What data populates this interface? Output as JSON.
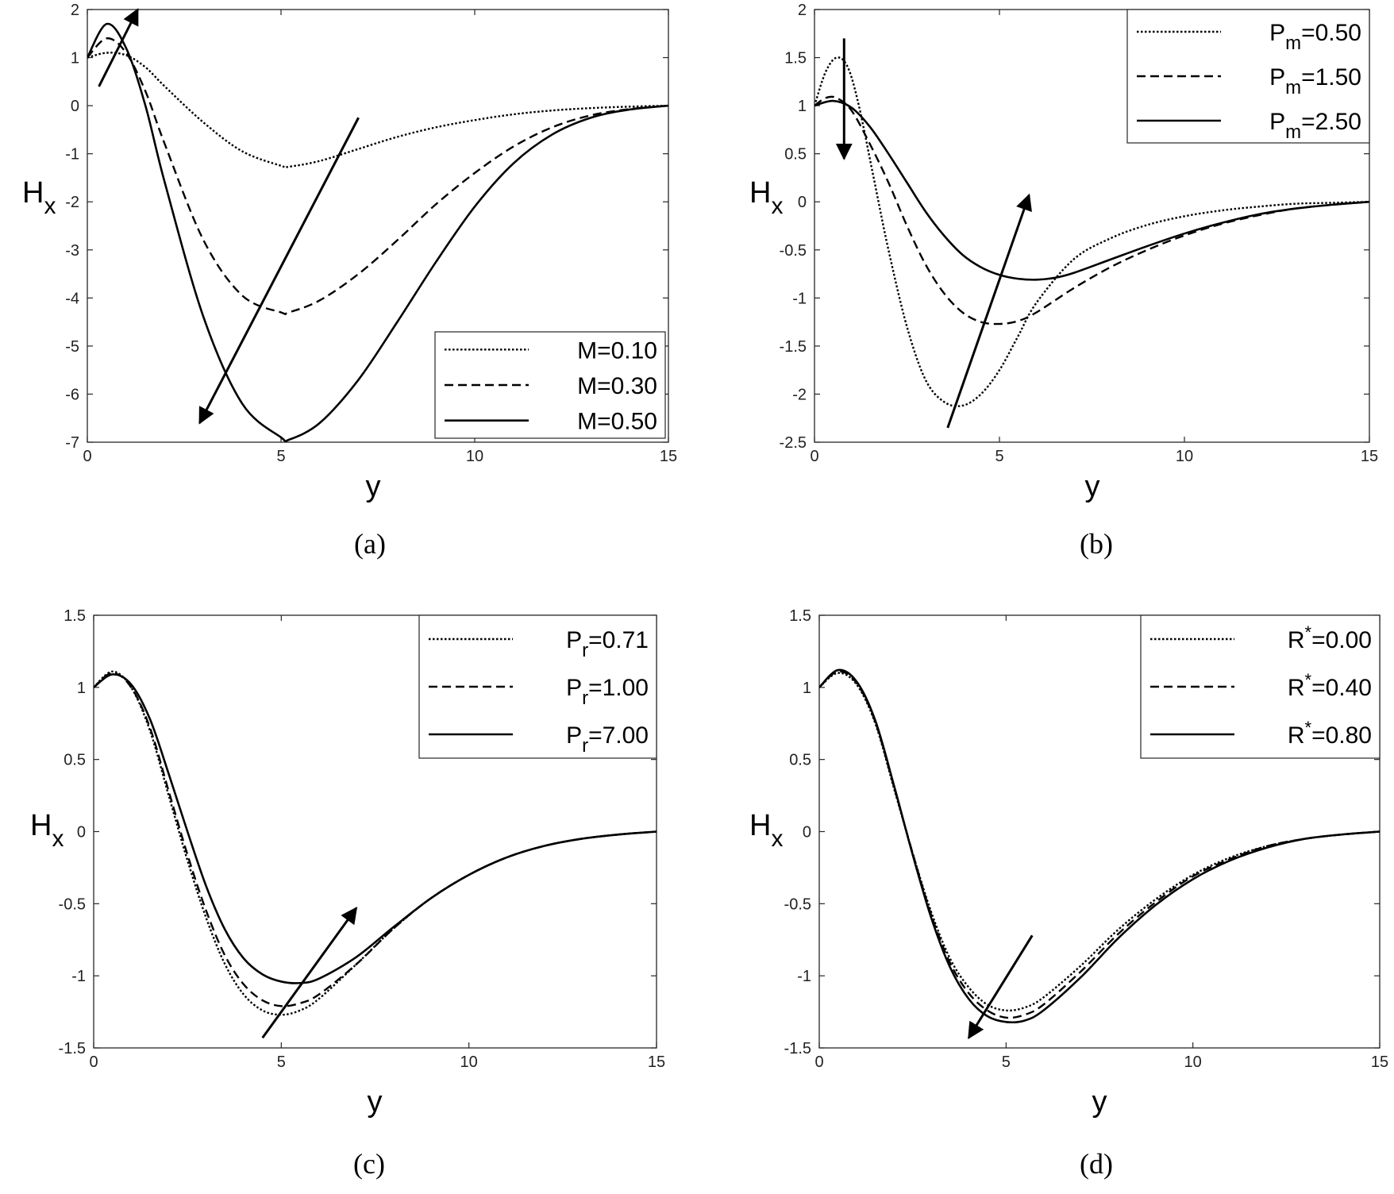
{
  "chart_data": [
    {
      "type": "line",
      "caption": "(a)",
      "ylabel": "H",
      "ylabel_sub": "x",
      "xlabel": "y",
      "xlim": [
        0,
        15
      ],
      "ylim": [
        -7,
        2
      ],
      "xticks": [
        0,
        5,
        10,
        15
      ],
      "yticks": [
        2,
        1,
        0,
        -1,
        -2,
        -3,
        -4,
        -5,
        -6,
        -7
      ],
      "ytick_labels": [
        "2",
        "1",
        "0",
        "-1",
        "-2",
        "-3",
        "-4",
        "-5",
        "-6",
        "-7"
      ],
      "legend_position": "bottom-right",
      "series": [
        {
          "name": "M=0.10",
          "label_main": "M=0.10",
          "label_sub": "",
          "label_sup": "",
          "label_tail": "",
          "style": "dotted",
          "x": [
            0,
            0.5,
            1,
            1.5,
            2,
            3,
            4,
            5,
            5.2,
            6,
            7,
            8,
            9,
            10,
            11,
            12,
            13,
            14,
            15
          ],
          "y": [
            1,
            1.1,
            1.05,
            0.8,
            0.4,
            -0.35,
            -0.95,
            -1.25,
            -1.27,
            -1.15,
            -0.9,
            -0.65,
            -0.45,
            -0.3,
            -0.18,
            -0.1,
            -0.05,
            -0.02,
            0
          ]
        },
        {
          "name": "M=0.30",
          "label_main": "M=0.30",
          "label_sub": "",
          "label_sup": "",
          "label_tail": "",
          "style": "dashed",
          "x": [
            0,
            0.5,
            1,
            1.5,
            2,
            3,
            4,
            5,
            5.2,
            6,
            7,
            8,
            9,
            10,
            11,
            12,
            13,
            14,
            15
          ],
          "y": [
            1,
            1.4,
            1.1,
            0.3,
            -0.8,
            -2.8,
            -3.95,
            -4.3,
            -4.3,
            -4.05,
            -3.5,
            -2.8,
            -2.05,
            -1.4,
            -0.85,
            -0.45,
            -0.2,
            -0.07,
            0
          ]
        },
        {
          "name": "M=0.50",
          "label_main": "M=0.50",
          "label_sub": "",
          "label_sup": "",
          "label_tail": "",
          "style": "solid",
          "x": [
            0,
            0.5,
            1,
            1.5,
            2,
            3,
            4,
            5,
            5.2,
            6,
            7,
            8,
            9,
            10,
            11,
            12,
            13,
            14,
            15
          ],
          "y": [
            1,
            1.7,
            1.2,
            0,
            -1.6,
            -4.4,
            -6.2,
            -6.9,
            -6.95,
            -6.6,
            -5.7,
            -4.5,
            -3.25,
            -2.1,
            -1.2,
            -0.6,
            -0.25,
            -0.08,
            0
          ]
        }
      ],
      "arrows": [
        {
          "from": [
            0.3,
            0.4
          ],
          "to": [
            1.3,
            2.0
          ]
        },
        {
          "from": [
            7.0,
            -0.25
          ],
          "to": [
            2.9,
            -6.6
          ]
        }
      ]
    },
    {
      "type": "line",
      "caption": "(b)",
      "ylabel": "H",
      "ylabel_sub": "x",
      "xlabel": "y",
      "xlim": [
        0,
        15
      ],
      "ylim": [
        -2.5,
        2
      ],
      "xticks": [
        0,
        5,
        10,
        15
      ],
      "yticks": [
        2,
        1.5,
        1,
        0.5,
        0,
        -0.5,
        -1,
        -1.5,
        -2,
        -2.5
      ],
      "ytick_labels": [
        "2",
        "1.5",
        "1",
        "0.5",
        "0",
        "-0.5",
        "-1",
        "-1.5",
        "-2",
        "-2.5"
      ],
      "legend_position": "top-right",
      "series": [
        {
          "name": "Pm=0.50",
          "label_main": "P",
          "label_sub": "m",
          "label_sup": "",
          "label_tail": "=0.50",
          "style": "dotted",
          "x": [
            0,
            0.3,
            0.6,
            0.9,
            1.2,
            1.6,
            2,
            2.5,
            3,
            3.5,
            4,
            4.5,
            5,
            5.5,
            6,
            7,
            8,
            9,
            10,
            11,
            12,
            13,
            14,
            15
          ],
          "y": [
            1,
            1.35,
            1.5,
            1.4,
            1.0,
            0.25,
            -0.5,
            -1.3,
            -1.85,
            -2.08,
            -2.12,
            -2.0,
            -1.75,
            -1.4,
            -1.05,
            -0.6,
            -0.38,
            -0.24,
            -0.15,
            -0.09,
            -0.05,
            -0.02,
            -0.01,
            0
          ]
        },
        {
          "name": "Pm=1.50",
          "label_main": "P",
          "label_sub": "m",
          "label_sup": "",
          "label_tail": "=1.50",
          "style": "dashed",
          "x": [
            0,
            0.3,
            0.6,
            1,
            1.5,
            2,
            2.5,
            3,
            3.5,
            4,
            4.5,
            5,
            5.5,
            6,
            7,
            8,
            9,
            10,
            11,
            12,
            13,
            14,
            15
          ],
          "y": [
            1,
            1.08,
            1.08,
            0.95,
            0.6,
            0.2,
            -0.25,
            -0.65,
            -0.95,
            -1.15,
            -1.25,
            -1.27,
            -1.24,
            -1.15,
            -0.9,
            -0.68,
            -0.5,
            -0.35,
            -0.23,
            -0.14,
            -0.07,
            -0.03,
            0
          ]
        },
        {
          "name": "Pm=2.50",
          "label_main": "P",
          "label_sub": "m",
          "label_sup": "",
          "label_tail": "=2.50",
          "style": "solid",
          "x": [
            0,
            0.5,
            1,
            1.5,
            2,
            2.5,
            3,
            3.5,
            4,
            4.5,
            5,
            5.5,
            6,
            6.5,
            7,
            8,
            9,
            10,
            11,
            12,
            13,
            14,
            15
          ],
          "y": [
            1,
            1.05,
            0.98,
            0.78,
            0.5,
            0.2,
            -0.1,
            -0.35,
            -0.55,
            -0.68,
            -0.76,
            -0.8,
            -0.81,
            -0.79,
            -0.74,
            -0.6,
            -0.46,
            -0.33,
            -0.22,
            -0.13,
            -0.07,
            -0.03,
            0
          ]
        }
      ],
      "arrows": [
        {
          "from": [
            0.8,
            1.7
          ],
          "to": [
            0.8,
            0.45
          ]
        },
        {
          "from": [
            3.6,
            -2.35
          ],
          "to": [
            5.8,
            0.07
          ]
        }
      ]
    },
    {
      "type": "line",
      "caption": "(c)",
      "ylabel": "H",
      "ylabel_sub": "x",
      "xlabel": "y",
      "xlim": [
        0,
        15
      ],
      "ylim": [
        -1.5,
        1.5
      ],
      "xticks": [
        0,
        5,
        10,
        15
      ],
      "yticks": [
        1.5,
        1,
        0.5,
        0,
        -0.5,
        -1,
        -1.5
      ],
      "ytick_labels": [
        "1.5",
        "1",
        "0.5",
        "0",
        "-0.5",
        "-1",
        "-1.5"
      ],
      "legend_position": "top-right",
      "series": [
        {
          "name": "Pr=0.71",
          "label_main": "P",
          "label_sub": "r",
          "label_sup": "",
          "label_tail": "=0.71",
          "style": "dotted",
          "x": [
            0,
            0.5,
            1,
            1.5,
            2,
            2.5,
            3,
            3.5,
            4,
            4.5,
            5,
            5.5,
            6,
            7,
            8,
            9,
            10,
            11,
            12,
            13,
            14,
            15
          ],
          "y": [
            1,
            1.11,
            1.0,
            0.7,
            0.25,
            -0.2,
            -0.6,
            -0.92,
            -1.13,
            -1.24,
            -1.27,
            -1.24,
            -1.16,
            -0.92,
            -0.67,
            -0.46,
            -0.3,
            -0.18,
            -0.1,
            -0.05,
            -0.02,
            0
          ]
        },
        {
          "name": "Pr=1.00",
          "label_main": "P",
          "label_sub": "r",
          "label_sup": "",
          "label_tail": "=1.00",
          "style": "dashed",
          "x": [
            0,
            0.5,
            1,
            1.5,
            2,
            2.5,
            3,
            3.5,
            4,
            4.5,
            5,
            5.5,
            6,
            7,
            8,
            9,
            10,
            11,
            12,
            13,
            14,
            15
          ],
          "y": [
            1,
            1.1,
            1.0,
            0.72,
            0.28,
            -0.16,
            -0.55,
            -0.86,
            -1.06,
            -1.17,
            -1.21,
            -1.19,
            -1.13,
            -0.92,
            -0.67,
            -0.46,
            -0.3,
            -0.18,
            -0.1,
            -0.05,
            -0.02,
            0
          ]
        },
        {
          "name": "Pr=7.00",
          "label_main": "P",
          "label_sub": "r",
          "label_sup": "",
          "label_tail": "=7.00",
          "style": "solid",
          "x": [
            0,
            0.5,
            1,
            1.5,
            2,
            2.5,
            3,
            3.5,
            4,
            4.5,
            5,
            5.5,
            6,
            7,
            8,
            9,
            10,
            11,
            12,
            13,
            14,
            15
          ],
          "y": [
            1,
            1.09,
            1.02,
            0.78,
            0.4,
            0.0,
            -0.38,
            -0.68,
            -0.88,
            -0.99,
            -1.04,
            -1.05,
            -1.02,
            -0.87,
            -0.66,
            -0.46,
            -0.3,
            -0.18,
            -0.1,
            -0.05,
            -0.02,
            0
          ]
        }
      ],
      "arrows": [
        {
          "from": [
            4.5,
            -1.43
          ],
          "to": [
            7.0,
            -0.53
          ]
        }
      ]
    },
    {
      "type": "line",
      "caption": "(d)",
      "ylabel": "H",
      "ylabel_sub": "x",
      "xlabel": "y",
      "xlim": [
        0,
        15
      ],
      "ylim": [
        -1.5,
        1.5
      ],
      "xticks": [
        0,
        5,
        10,
        15
      ],
      "yticks": [
        1.5,
        1,
        0.5,
        0,
        -0.5,
        -1,
        -1.5
      ],
      "ytick_labels": [
        "1.5",
        "1",
        "0.5",
        "0",
        "-0.5",
        "-1",
        "-1.5"
      ],
      "legend_position": "top-right",
      "series": [
        {
          "name": "R*=0.00",
          "label_main": "R",
          "label_sub": "",
          "label_sup": "*",
          "label_tail": "=0.00",
          "style": "dotted",
          "x": [
            0,
            0.5,
            1,
            1.5,
            2,
            2.5,
            3,
            3.5,
            4,
            4.5,
            5,
            5.5,
            6,
            7,
            8,
            9,
            10,
            11,
            12,
            13,
            14,
            15
          ],
          "y": [
            1,
            1.1,
            1.02,
            0.75,
            0.3,
            -0.15,
            -0.56,
            -0.88,
            -1.08,
            -1.2,
            -1.24,
            -1.22,
            -1.15,
            -0.93,
            -0.68,
            -0.47,
            -0.3,
            -0.18,
            -0.1,
            -0.05,
            -0.02,
            0
          ]
        },
        {
          "name": "R*=0.40",
          "label_main": "R",
          "label_sub": "",
          "label_sup": "*",
          "label_tail": "=0.40",
          "style": "dashed",
          "x": [
            0,
            0.5,
            1,
            1.5,
            2,
            2.5,
            3,
            3.5,
            4,
            4.5,
            5,
            5.5,
            6,
            7,
            8,
            9,
            10,
            11,
            12,
            13,
            14,
            15
          ],
          "y": [
            1,
            1.11,
            1.03,
            0.76,
            0.31,
            -0.15,
            -0.58,
            -0.91,
            -1.12,
            -1.24,
            -1.29,
            -1.27,
            -1.2,
            -0.97,
            -0.71,
            -0.49,
            -0.31,
            -0.19,
            -0.1,
            -0.05,
            -0.02,
            0
          ]
        },
        {
          "name": "R*=0.80",
          "label_main": "R",
          "label_sub": "",
          "label_sup": "*",
          "label_tail": "=0.80",
          "style": "solid",
          "x": [
            0,
            0.5,
            1,
            1.5,
            2,
            2.5,
            3,
            3.5,
            4,
            4.5,
            5,
            5.5,
            6,
            7,
            8,
            9,
            10,
            11,
            12,
            13,
            14,
            15
          ],
          "y": [
            1,
            1.12,
            1.04,
            0.77,
            0.32,
            -0.16,
            -0.6,
            -0.94,
            -1.16,
            -1.28,
            -1.32,
            -1.31,
            -1.24,
            -1.01,
            -0.74,
            -0.51,
            -0.33,
            -0.2,
            -0.11,
            -0.05,
            -0.02,
            0
          ]
        }
      ],
      "arrows": [
        {
          "from": [
            5.7,
            -0.72
          ],
          "to": [
            4.0,
            -1.43
          ]
        }
      ]
    }
  ]
}
